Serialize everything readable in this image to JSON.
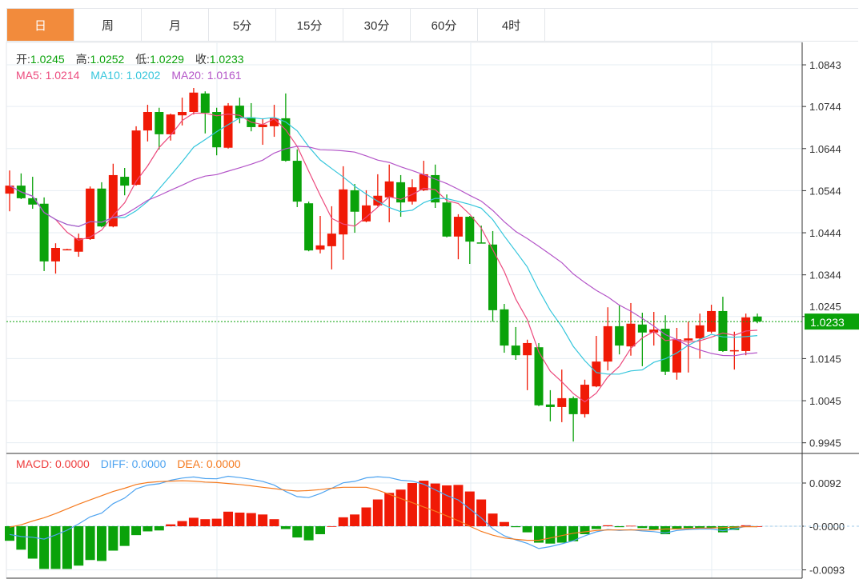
{
  "tabs": [
    {
      "label": "日",
      "active": true
    },
    {
      "label": "周",
      "active": false
    },
    {
      "label": "月",
      "active": false
    },
    {
      "label": "5分",
      "active": false
    },
    {
      "label": "15分",
      "active": false
    },
    {
      "label": "30分",
      "active": false
    },
    {
      "label": "60分",
      "active": false
    },
    {
      "label": "4时",
      "active": false
    }
  ],
  "ohlc_legend": {
    "open_label": "开:",
    "open": "1.0245",
    "high_label": "高:",
    "high": "1.0252",
    "low_label": "低:",
    "low": "1.0229",
    "close_label": "收:",
    "close": "1.0233"
  },
  "ma_legend": {
    "ma5": "MA5: 1.0214",
    "ma10": "MA10: 1.0202",
    "ma20": "MA20: 1.0161"
  },
  "macd_legend": {
    "macd": "MACD: 0.0000",
    "diff": "DIFF: 0.0000",
    "dea": "DEA: 0.0000"
  },
  "colors": {
    "up": "#f01a06",
    "down": "#0aa20a",
    "ma5": "#ec4a7d",
    "ma10": "#35c6dc",
    "ma20": "#b455c8",
    "diff": "#4da3f0",
    "dea": "#f57a1e",
    "tab_active": "#f28b3c"
  },
  "chart_data": [
    {
      "type": "candlestick",
      "title": "",
      "price_ticks": [
        "1.0843",
        "1.0744",
        "1.0644",
        "1.0544",
        "1.0444",
        "1.0344",
        "1.0245",
        "1.0145",
        "1.0045",
        "0.9945"
      ],
      "ylim": [
        0.9945,
        1.0843
      ],
      "last_price": "1.0233",
      "ohlc": [
        [
          1.0537,
          1.0592,
          1.0495,
          1.0556
        ],
        [
          1.0556,
          1.0585,
          1.0524,
          1.0526
        ],
        [
          1.0526,
          1.0577,
          1.0501,
          1.0511
        ],
        [
          1.0513,
          1.0528,
          1.0353,
          1.0376
        ],
        [
          1.0376,
          1.0419,
          1.0347,
          1.0408
        ],
        [
          1.0404,
          1.0406,
          1.0403,
          1.0405
        ],
        [
          1.0399,
          1.0442,
          1.0387,
          1.0431
        ],
        [
          1.0429,
          1.0554,
          1.0427,
          1.0549
        ],
        [
          1.0549,
          1.0564,
          1.0457,
          1.0459
        ],
        [
          1.0459,
          1.0608,
          1.0457,
          1.0581
        ],
        [
          1.0577,
          1.0598,
          1.0533,
          1.0556
        ],
        [
          1.0558,
          1.0697,
          1.0556,
          1.0687
        ],
        [
          1.0687,
          1.0748,
          1.0661,
          1.0731
        ],
        [
          1.0731,
          1.0741,
          1.0642,
          1.0678
        ],
        [
          1.0678,
          1.0727,
          1.0663,
          1.0725
        ],
        [
          1.0723,
          1.0765,
          1.0699,
          1.0731
        ],
        [
          1.0731,
          1.0788,
          1.0725,
          1.0777
        ],
        [
          1.0775,
          1.078,
          1.068,
          1.0729
        ],
        [
          1.0731,
          1.0741,
          1.0628,
          1.0647
        ],
        [
          1.0646,
          1.0752,
          1.0644,
          1.0746
        ],
        [
          1.0746,
          1.0765,
          1.0704,
          1.0716
        ],
        [
          1.0718,
          1.0752,
          1.0685,
          1.0695
        ],
        [
          1.0695,
          1.0716,
          1.0653,
          1.0701
        ],
        [
          1.0697,
          1.0748,
          1.0672,
          1.0716
        ],
        [
          1.0716,
          1.0775,
          1.0613,
          1.0615
        ],
        [
          1.0615,
          1.0642,
          1.0505,
          1.0518
        ],
        [
          1.0514,
          1.0518,
          1.04,
          1.0402
        ],
        [
          1.0404,
          1.0484,
          1.0395,
          1.0414
        ],
        [
          1.0412,
          1.0507,
          1.0357,
          1.0442
        ],
        [
          1.044,
          1.0602,
          1.038,
          1.0547
        ],
        [
          1.0545,
          1.056,
          1.0444,
          1.0494
        ],
        [
          1.0471,
          1.0545,
          1.0469,
          1.0509
        ],
        [
          1.0509,
          1.0583,
          1.0507,
          1.0532
        ],
        [
          1.0528,
          1.0606,
          1.0469,
          1.0566
        ],
        [
          1.0564,
          1.0581,
          1.0482,
          1.0516
        ],
        [
          1.0518,
          1.0571,
          1.0511,
          1.0552
        ],
        [
          1.0545,
          1.0615,
          1.0543,
          1.0583
        ],
        [
          1.0581,
          1.0606,
          1.0503,
          1.0516
        ],
        [
          1.0516,
          1.0535,
          1.0433,
          1.0435
        ],
        [
          1.0435,
          1.0488,
          1.0381,
          1.0482
        ],
        [
          1.0482,
          1.0484,
          1.037,
          1.0423
        ],
        [
          1.0421,
          1.0461,
          1.0419,
          1.0419
        ],
        [
          1.0416,
          1.0448,
          1.0233,
          1.026
        ],
        [
          1.0262,
          1.0275,
          1.0159,
          1.0176
        ],
        [
          1.0176,
          1.022,
          1.0142,
          1.0153
        ],
        [
          1.0153,
          1.019,
          1.007,
          1.0182
        ],
        [
          1.0172,
          1.0182,
          1.0032,
          1.0034
        ],
        [
          1.0036,
          1.007,
          0.9996,
          1.003
        ],
        [
          1.003,
          1.0119,
          0.9994,
          1.0051
        ],
        [
          1.0051,
          1.0055,
          0.9948,
          1.0013
        ],
        [
          1.0013,
          1.0095,
          1.0005,
          1.0083
        ],
        [
          1.0079,
          1.0199,
          1.0077,
          1.0138
        ],
        [
          1.0138,
          1.0267,
          1.0117,
          1.0222
        ],
        [
          1.0222,
          1.0271,
          1.0155,
          1.0176
        ],
        [
          1.0174,
          1.0277,
          1.0152,
          1.0228
        ],
        [
          1.0226,
          1.0254,
          1.0127,
          1.0207
        ],
        [
          1.0207,
          1.0256,
          1.0176,
          1.0214
        ],
        [
          1.0216,
          1.0248,
          1.0106,
          1.0114
        ],
        [
          1.0112,
          1.0218,
          1.0095,
          1.0191
        ],
        [
          1.0188,
          1.0233,
          1.0112,
          1.0193
        ],
        [
          1.0193,
          1.0252,
          1.0145,
          1.0224
        ],
        [
          1.0209,
          1.0273,
          1.0205,
          1.0258
        ],
        [
          1.0258,
          1.0292,
          1.0161,
          1.0163
        ],
        [
          1.0163,
          1.0209,
          1.0119,
          1.0165
        ],
        [
          1.0163,
          1.0252,
          1.0153,
          1.0243
        ],
        [
          1.0245,
          1.0252,
          1.0229,
          1.0233
        ]
      ],
      "ma_periods": [
        5,
        10,
        20
      ]
    },
    {
      "type": "bar",
      "title": "MACD",
      "ticks": [
        "0.0092",
        "-0.0000",
        "-0.0093"
      ],
      "ylim": [
        -0.0093,
        0.0092
      ],
      "histogram": [
        -0.0031,
        -0.005,
        -0.0069,
        -0.0091,
        -0.0091,
        -0.0091,
        -0.0084,
        -0.0072,
        -0.0074,
        -0.0052,
        -0.0042,
        -0.0019,
        -0.0011,
        -0.0009,
        0.0004,
        0.0011,
        0.0018,
        0.0015,
        0.0016,
        0.0031,
        0.0029,
        0.0028,
        0.0025,
        0.0015,
        -0.0006,
        -0.0024,
        -0.003,
        -0.0017,
        0.0,
        0.0019,
        0.0025,
        0.004,
        0.0057,
        0.0071,
        0.0078,
        0.0092,
        0.0097,
        0.0091,
        0.0087,
        0.0088,
        0.0074,
        0.0057,
        0.0027,
        0.0009,
        -0.0002,
        -0.0013,
        -0.0035,
        -0.0037,
        -0.0035,
        -0.0032,
        -0.0017,
        -0.0006,
        0.0002,
        -0.0002,
        0.0001,
        -0.0004,
        -0.0007,
        -0.0017,
        -0.0006,
        -0.0004,
        -0.0004,
        -0.0004,
        -0.0013,
        -0.0008,
        0.0002,
        0.0
      ],
      "dea": [
        -0.0002,
        0.0003,
        0.0011,
        0.0018,
        0.0027,
        0.0037,
        0.0047,
        0.0056,
        0.0065,
        0.0074,
        0.0081,
        0.0089,
        0.0093,
        0.0095,
        0.0096,
        0.0097,
        0.0096,
        0.0094,
        0.0093,
        0.0091,
        0.0089,
        0.0086,
        0.0083,
        0.008,
        0.0077,
        0.0075,
        0.0076,
        0.0078,
        0.0081,
        0.0083,
        0.0083,
        0.0083,
        0.0077,
        0.0068,
        0.0059,
        0.005,
        0.0041,
        0.0032,
        0.0022,
        0.0012,
        0.0,
        -0.0011,
        -0.0019,
        -0.0025,
        -0.0028,
        -0.003,
        -0.003,
        -0.0025,
        -0.002,
        -0.0015,
        -0.0012,
        -0.0009,
        -0.0008,
        -0.0008,
        -0.0008,
        -0.0008,
        -0.0008,
        -0.0006,
        -0.0006,
        -0.0005,
        -0.0004,
        -0.0004,
        -0.0003,
        -0.0002,
        -0.0001,
        -0.0001
      ]
    }
  ]
}
